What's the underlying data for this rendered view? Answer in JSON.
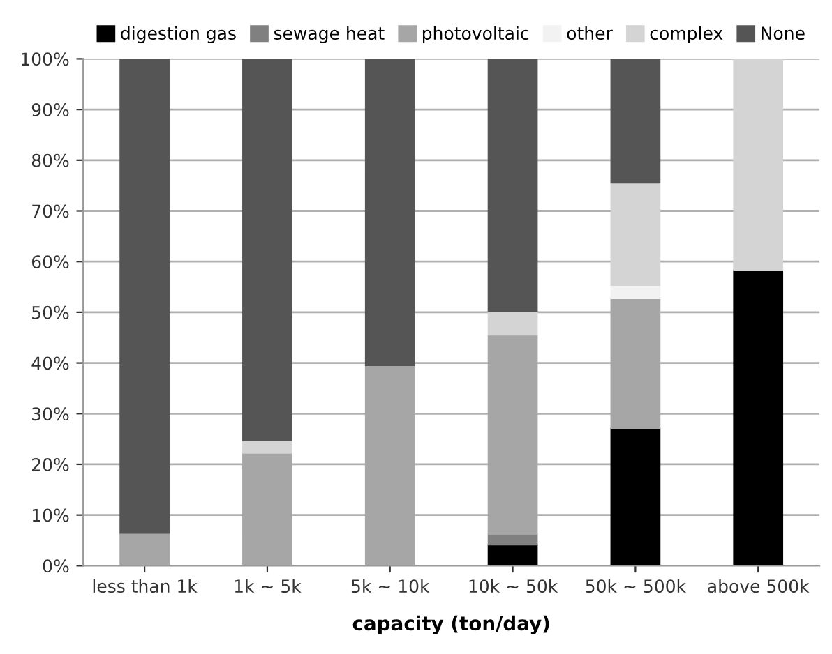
{
  "chart_data": {
    "type": "bar",
    "stacked": true,
    "xlabel": "capacity (ton/day)",
    "categories": [
      "less than 1k",
      "1k ~ 5k",
      "5k ~ 10k",
      "10k ~ 50k",
      "50k ~ 500k",
      "above 500k"
    ],
    "series": [
      {
        "name": "digestion gas",
        "color": "#000000",
        "values": [
          null,
          null,
          null,
          4.1,
          27.1,
          58.3
        ]
      },
      {
        "name": "sewage heat",
        "color": "#808080",
        "values": [
          null,
          null,
          null,
          2.1,
          null,
          null
        ]
      },
      {
        "name": "photovoltaic",
        "color": "#a6a6a6",
        "values": [
          6.4,
          22.2,
          39.5,
          39.3,
          25.6,
          null
        ]
      },
      {
        "name": "other",
        "color": "#f2f2f2",
        "values": [
          null,
          null,
          null,
          null,
          2.6,
          null
        ]
      },
      {
        "name": "complex",
        "color": "#d4d4d4",
        "values": [
          null,
          2.5,
          null,
          4.7,
          20.2,
          41.7
        ]
      },
      {
        "name": "None",
        "color": "#555555",
        "values": [
          93.6,
          75.3,
          60.5,
          49.8,
          24.5,
          null
        ]
      }
    ],
    "ylim": [
      0,
      100
    ],
    "yticks": [
      {
        "value": 0,
        "label": "0%"
      },
      {
        "value": 10,
        "label": "10%"
      },
      {
        "value": 20,
        "label": "20%"
      },
      {
        "value": 30,
        "label": "30%"
      },
      {
        "value": 40,
        "label": "40%"
      },
      {
        "value": 50,
        "label": "50%"
      },
      {
        "value": 60,
        "label": "60%"
      },
      {
        "value": 70,
        "label": "70%"
      },
      {
        "value": 80,
        "label": "80%"
      },
      {
        "value": 90,
        "label": "90%"
      },
      {
        "value": 100,
        "label": "100%"
      }
    ],
    "grid": "y",
    "legend": "top"
  }
}
